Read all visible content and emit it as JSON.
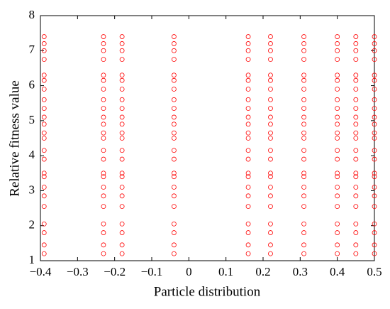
{
  "chart_data": {
    "type": "scatter",
    "xlabel": "Particle distribution",
    "ylabel": "Relative fitness value",
    "color": "#ff0000",
    "xlim": [
      -0.4,
      0.5
    ],
    "ylim": [
      1,
      8
    ],
    "xticks": [
      {
        "value": -0.4,
        "label": "−0.4"
      },
      {
        "value": -0.3,
        "label": "−0.3"
      },
      {
        "value": -0.2,
        "label": "−0.2"
      },
      {
        "value": -0.1,
        "label": "−0.1"
      },
      0,
      0.1,
      0.2,
      0.3,
      0.4,
      0.5
    ],
    "yticks": [
      1,
      2,
      3,
      4,
      5,
      6,
      7,
      8
    ],
    "x": [
      -0.39,
      -0.39,
      -0.39,
      -0.39,
      -0.39,
      -0.39,
      -0.39,
      -0.39,
      -0.39,
      -0.39,
      -0.39,
      -0.39,
      -0.39,
      -0.39,
      -0.39,
      -0.39,
      -0.39,
      -0.39,
      -0.39,
      -0.39,
      -0.39,
      -0.39,
      -0.39,
      -0.39,
      -0.23,
      -0.23,
      -0.23,
      -0.23,
      -0.23,
      -0.23,
      -0.23,
      -0.23,
      -0.23,
      -0.23,
      -0.23,
      -0.23,
      -0.23,
      -0.23,
      -0.23,
      -0.23,
      -0.23,
      -0.23,
      -0.23,
      -0.23,
      -0.23,
      -0.23,
      -0.23,
      -0.23,
      -0.18,
      -0.18,
      -0.18,
      -0.18,
      -0.18,
      -0.18,
      -0.18,
      -0.18,
      -0.18,
      -0.18,
      -0.18,
      -0.18,
      -0.18,
      -0.18,
      -0.18,
      -0.18,
      -0.18,
      -0.18,
      -0.18,
      -0.18,
      -0.18,
      -0.18,
      -0.18,
      -0.18,
      -0.04,
      -0.04,
      -0.04,
      -0.04,
      -0.04,
      -0.04,
      -0.04,
      -0.04,
      -0.04,
      -0.04,
      -0.04,
      -0.04,
      -0.04,
      -0.04,
      -0.04,
      -0.04,
      -0.04,
      -0.04,
      -0.04,
      -0.04,
      -0.04,
      -0.04,
      -0.04,
      -0.04,
      0.16,
      0.16,
      0.16,
      0.16,
      0.16,
      0.16,
      0.16,
      0.16,
      0.16,
      0.16,
      0.16,
      0.16,
      0.16,
      0.16,
      0.16,
      0.16,
      0.16,
      0.16,
      0.16,
      0.16,
      0.16,
      0.16,
      0.16,
      0.16,
      0.22,
      0.22,
      0.22,
      0.22,
      0.22,
      0.22,
      0.22,
      0.22,
      0.22,
      0.22,
      0.22,
      0.22,
      0.22,
      0.22,
      0.22,
      0.22,
      0.22,
      0.22,
      0.22,
      0.22,
      0.22,
      0.22,
      0.22,
      0.22,
      0.31,
      0.31,
      0.31,
      0.31,
      0.31,
      0.31,
      0.31,
      0.31,
      0.31,
      0.31,
      0.31,
      0.31,
      0.31,
      0.31,
      0.31,
      0.31,
      0.31,
      0.31,
      0.31,
      0.31,
      0.31,
      0.31,
      0.31,
      0.31,
      0.4,
      0.4,
      0.4,
      0.4,
      0.4,
      0.4,
      0.4,
      0.4,
      0.4,
      0.4,
      0.4,
      0.4,
      0.4,
      0.4,
      0.4,
      0.4,
      0.4,
      0.4,
      0.4,
      0.4,
      0.4,
      0.4,
      0.4,
      0.4,
      0.45,
      0.45,
      0.45,
      0.45,
      0.45,
      0.45,
      0.45,
      0.45,
      0.45,
      0.45,
      0.45,
      0.45,
      0.45,
      0.45,
      0.45,
      0.45,
      0.45,
      0.45,
      0.45,
      0.45,
      0.45,
      0.45,
      0.45,
      0.45,
      0.5,
      0.5,
      0.5,
      0.5,
      0.5,
      0.5,
      0.5,
      0.5,
      0.5,
      0.5,
      0.5,
      0.5,
      0.5,
      0.5,
      0.5,
      0.5,
      0.5,
      0.5,
      0.5,
      0.5,
      0.5,
      0.5,
      0.5,
      0.5
    ],
    "values": [
      1.2,
      1.45,
      1.8,
      2.05,
      2.55,
      2.85,
      3.1,
      3.4,
      3.5,
      3.9,
      4.15,
      4.5,
      4.65,
      4.9,
      5.1,
      5.35,
      5.6,
      5.9,
      6.15,
      6.3,
      6.75,
      7.0,
      7.2,
      7.4,
      1.2,
      1.45,
      1.8,
      2.05,
      2.55,
      2.85,
      3.1,
      3.4,
      3.5,
      3.9,
      4.15,
      4.5,
      4.65,
      4.9,
      5.1,
      5.35,
      5.6,
      5.9,
      6.15,
      6.3,
      6.75,
      7.0,
      7.2,
      7.4,
      1.2,
      1.45,
      1.8,
      2.05,
      2.55,
      2.85,
      3.1,
      3.4,
      3.5,
      3.9,
      4.15,
      4.5,
      4.65,
      4.9,
      5.1,
      5.35,
      5.6,
      5.9,
      6.15,
      6.3,
      6.75,
      7.0,
      7.2,
      7.4,
      1.2,
      1.45,
      1.8,
      2.05,
      2.55,
      2.85,
      3.1,
      3.4,
      3.5,
      3.9,
      4.15,
      4.5,
      4.65,
      4.9,
      5.1,
      5.35,
      5.6,
      5.9,
      6.15,
      6.3,
      6.75,
      7.0,
      7.2,
      7.4,
      1.2,
      1.45,
      1.8,
      2.05,
      2.55,
      2.85,
      3.1,
      3.4,
      3.5,
      3.9,
      4.15,
      4.5,
      4.65,
      4.9,
      5.1,
      5.35,
      5.6,
      5.9,
      6.15,
      6.3,
      6.75,
      7.0,
      7.2,
      7.4,
      1.2,
      1.45,
      1.8,
      2.05,
      2.55,
      2.85,
      3.1,
      3.4,
      3.5,
      3.9,
      4.15,
      4.5,
      4.65,
      4.9,
      5.1,
      5.35,
      5.6,
      5.9,
      6.15,
      6.3,
      6.75,
      7.0,
      7.2,
      7.4,
      1.2,
      1.45,
      1.8,
      2.05,
      2.55,
      2.85,
      3.1,
      3.4,
      3.5,
      3.9,
      4.15,
      4.5,
      4.65,
      4.9,
      5.1,
      5.35,
      5.6,
      5.9,
      6.15,
      6.3,
      6.75,
      7.0,
      7.2,
      7.4,
      1.2,
      1.45,
      1.8,
      2.05,
      2.55,
      2.85,
      3.1,
      3.4,
      3.5,
      3.9,
      4.15,
      4.5,
      4.65,
      4.9,
      5.1,
      5.35,
      5.6,
      5.9,
      6.15,
      6.3,
      6.75,
      7.0,
      7.2,
      7.4,
      1.2,
      1.45,
      1.8,
      2.05,
      2.55,
      2.85,
      3.1,
      3.4,
      3.5,
      3.9,
      4.15,
      4.5,
      4.65,
      4.9,
      5.1,
      5.35,
      5.6,
      5.9,
      6.15,
      6.3,
      6.75,
      7.0,
      7.2,
      7.4,
      1.2,
      1.45,
      1.8,
      2.05,
      2.55,
      2.85,
      3.1,
      3.4,
      3.5,
      3.9,
      4.15,
      4.5,
      4.65,
      4.9,
      5.1,
      5.35,
      5.6,
      5.9,
      6.15,
      6.3,
      6.75,
      7.0,
      7.2,
      7.4
    ]
  }
}
